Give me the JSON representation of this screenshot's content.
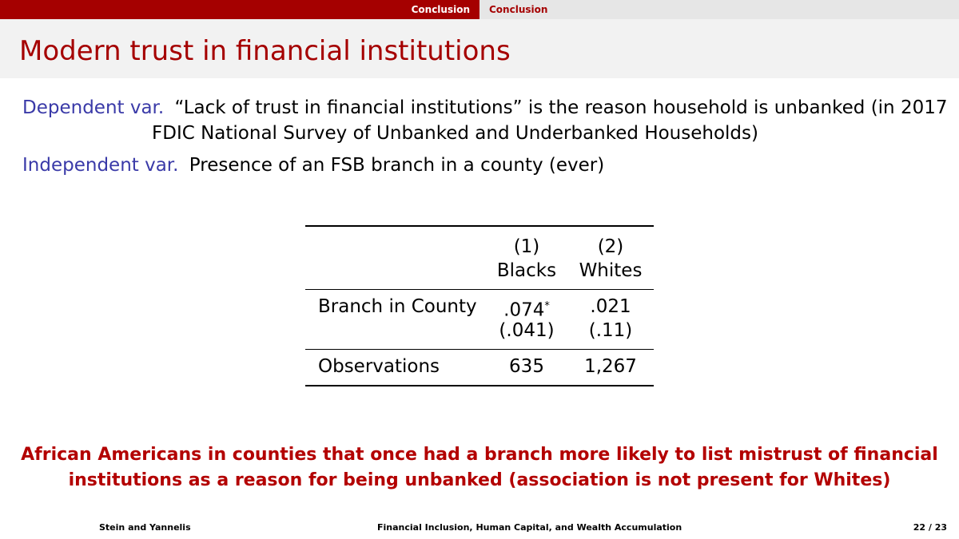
{
  "navbar": {
    "left_section": "Conclusion",
    "right_section": "Conclusion"
  },
  "slide": {
    "title": "Modern trust in financial institutions"
  },
  "definitions": {
    "dependent_term": "Dependent var.",
    "dependent_text_line1": "“Lack of trust in financial institutions” is the reason household is unbanked (in 2017",
    "dependent_text_line2": "FDIC National Survey of Unbanked and Underbanked Households)",
    "independent_term": "Independent var.",
    "independent_text": "Presence of an FSB branch in a county (ever)"
  },
  "table": {
    "col1_num": "(1)",
    "col1_name": "Blacks",
    "col2_num": "(2)",
    "col2_name": "Whites",
    "row1_label": "Branch in County",
    "row1_col1_coef": ".074",
    "row1_col1_star": "*",
    "row1_col2_coef": ".021",
    "row1_col1_se": "(.041)",
    "row1_col2_se": "(.11)",
    "row2_label": "Observations",
    "row2_col1": "635",
    "row2_col2": "1,267"
  },
  "conclusion": {
    "line1": "African Americans in counties that once had a branch more likely to list mistrust of financial",
    "line2": "institutions as a reason for being unbanked (association is not present for Whites)"
  },
  "footer": {
    "authors": "Stein and Yannelis",
    "paper_title": "Financial Inclusion, Human Capital, and Wealth Accumulation",
    "page": "22 / 23"
  },
  "colors": {
    "accent": "#a50000",
    "term_blue": "#3a3aa8",
    "nav_gray": "#e6e6e6",
    "title_bg": "#f2f2f2"
  }
}
